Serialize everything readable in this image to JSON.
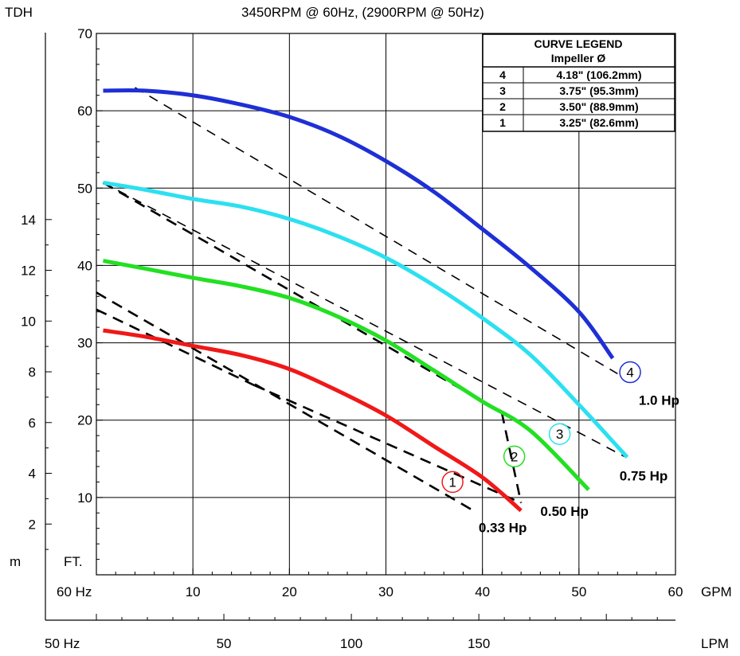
{
  "chart_data": {
    "type": "line",
    "title": "3450RPM @ 60Hz, (2900RPM @ 50Hz)",
    "y_left_title": "TDH",
    "y_unit_m": "m",
    "y_unit_ft": "FT.",
    "x_gpm_label": "GPM",
    "x_lpm_label": "LPM",
    "x_60hz_label": "60 Hz",
    "x_50hz_label": "50 Hz",
    "x_gpm_ticks": [
      "10",
      "20",
      "30",
      "40",
      "50",
      "60"
    ],
    "x_lpm_ticks": [
      "50",
      "100",
      "150"
    ],
    "y_ft_ticks": [
      "10",
      "20",
      "30",
      "40",
      "50",
      "60",
      "70"
    ],
    "y_m_ticks": [
      "2",
      "4",
      "6",
      "8",
      "10",
      "12",
      "14"
    ],
    "xlim_gpm": [
      0,
      60
    ],
    "ylim_ft": [
      0,
      70
    ],
    "legend": {
      "title": "CURVE LEGEND",
      "subtitle": "Impeller Ø",
      "rows": [
        {
          "id": "4",
          "text": "4.18\" (106.2mm)"
        },
        {
          "id": "3",
          "text": "3.75\" (95.3mm)"
        },
        {
          "id": "2",
          "text": "3.50\" (88.9mm)"
        },
        {
          "id": "1",
          "text": "3.25\" (82.6mm)"
        }
      ]
    },
    "series": [
      {
        "id": "4",
        "color": "#1f2fd6",
        "x": [
          0.7,
          5,
          10,
          15,
          20,
          25,
          30,
          35,
          40,
          45,
          50,
          53.5
        ],
        "y": [
          62.6,
          62.6,
          62,
          60.8,
          59.2,
          56.8,
          53.5,
          49.5,
          44.7,
          39.7,
          34,
          28
        ]
      },
      {
        "id": "3",
        "color": "#2ce0f0",
        "x": [
          0.7,
          5,
          10,
          15,
          20,
          25,
          30,
          35,
          40,
          45,
          50,
          55
        ],
        "y": [
          50.7,
          49.8,
          48.6,
          47.6,
          46,
          43.8,
          41,
          37.4,
          33.2,
          28.4,
          22,
          15.2
        ]
      },
      {
        "id": "2",
        "color": "#22e022",
        "x": [
          0.7,
          5,
          10,
          15,
          20,
          25,
          30,
          35,
          40,
          45,
          51
        ],
        "y": [
          40.6,
          39.6,
          38.4,
          37.3,
          35.8,
          33.4,
          30.3,
          26.4,
          22.4,
          18.6,
          11
        ]
      },
      {
        "id": "1",
        "color": "#f01818",
        "x": [
          0.7,
          5,
          10,
          15,
          20,
          25,
          30,
          35,
          40,
          44
        ],
        "y": [
          31.6,
          30.8,
          29.6,
          28.4,
          26.6,
          23.8,
          20.6,
          16.6,
          12.6,
          8.3
        ]
      }
    ],
    "hp_lines": [
      {
        "label": "1.0 Hp",
        "x": [
          4,
          54
        ],
        "y": [
          63,
          26
        ]
      },
      {
        "label": "0.75 Hp",
        "x": [
          0.7,
          54.7
        ],
        "y": [
          50.7,
          15.3
        ]
      },
      {
        "label": "0.50 Hp",
        "x": [
          0.7,
          42
        ],
        "y": [
          50.7,
          21
        ],
        "x2": [
          42,
          44
        ],
        "y2": [
          21,
          9.3
        ]
      },
      {
        "label": "0.33 Hp",
        "x": [
          0,
          39.2
        ],
        "y": [
          36.5,
          8.2
        ]
      },
      {
        "label": "",
        "x": [
          0,
          16.2
        ],
        "y": [
          34.3,
          24.6
        ],
        "x2": [
          16.2,
          44
        ],
        "y2": [
          24.6,
          9.3
        ]
      }
    ],
    "curve_markers": [
      {
        "id": "4",
        "x": 55.3,
        "y": 26.2,
        "color": "#1f2fd6"
      },
      {
        "id": "3",
        "x": 48,
        "y": 18.2,
        "color": "#2ce0f0"
      },
      {
        "id": "2",
        "x": 43.3,
        "y": 15.3,
        "color": "#22e022"
      },
      {
        "id": "1",
        "x": 36.9,
        "y": 12.0,
        "color": "#f01818"
      }
    ],
    "hp_labels": [
      {
        "text": "1.0 Hp",
        "x": 58.3,
        "y": 22.0
      },
      {
        "text": "0.75 Hp",
        "x": 56.7,
        "y": 12.2
      },
      {
        "text": "0.50 Hp",
        "x": 48.5,
        "y": 7.6
      },
      {
        "text": "0.33 Hp",
        "x": 42.1,
        "y": 5.5
      }
    ],
    "grid": true
  }
}
